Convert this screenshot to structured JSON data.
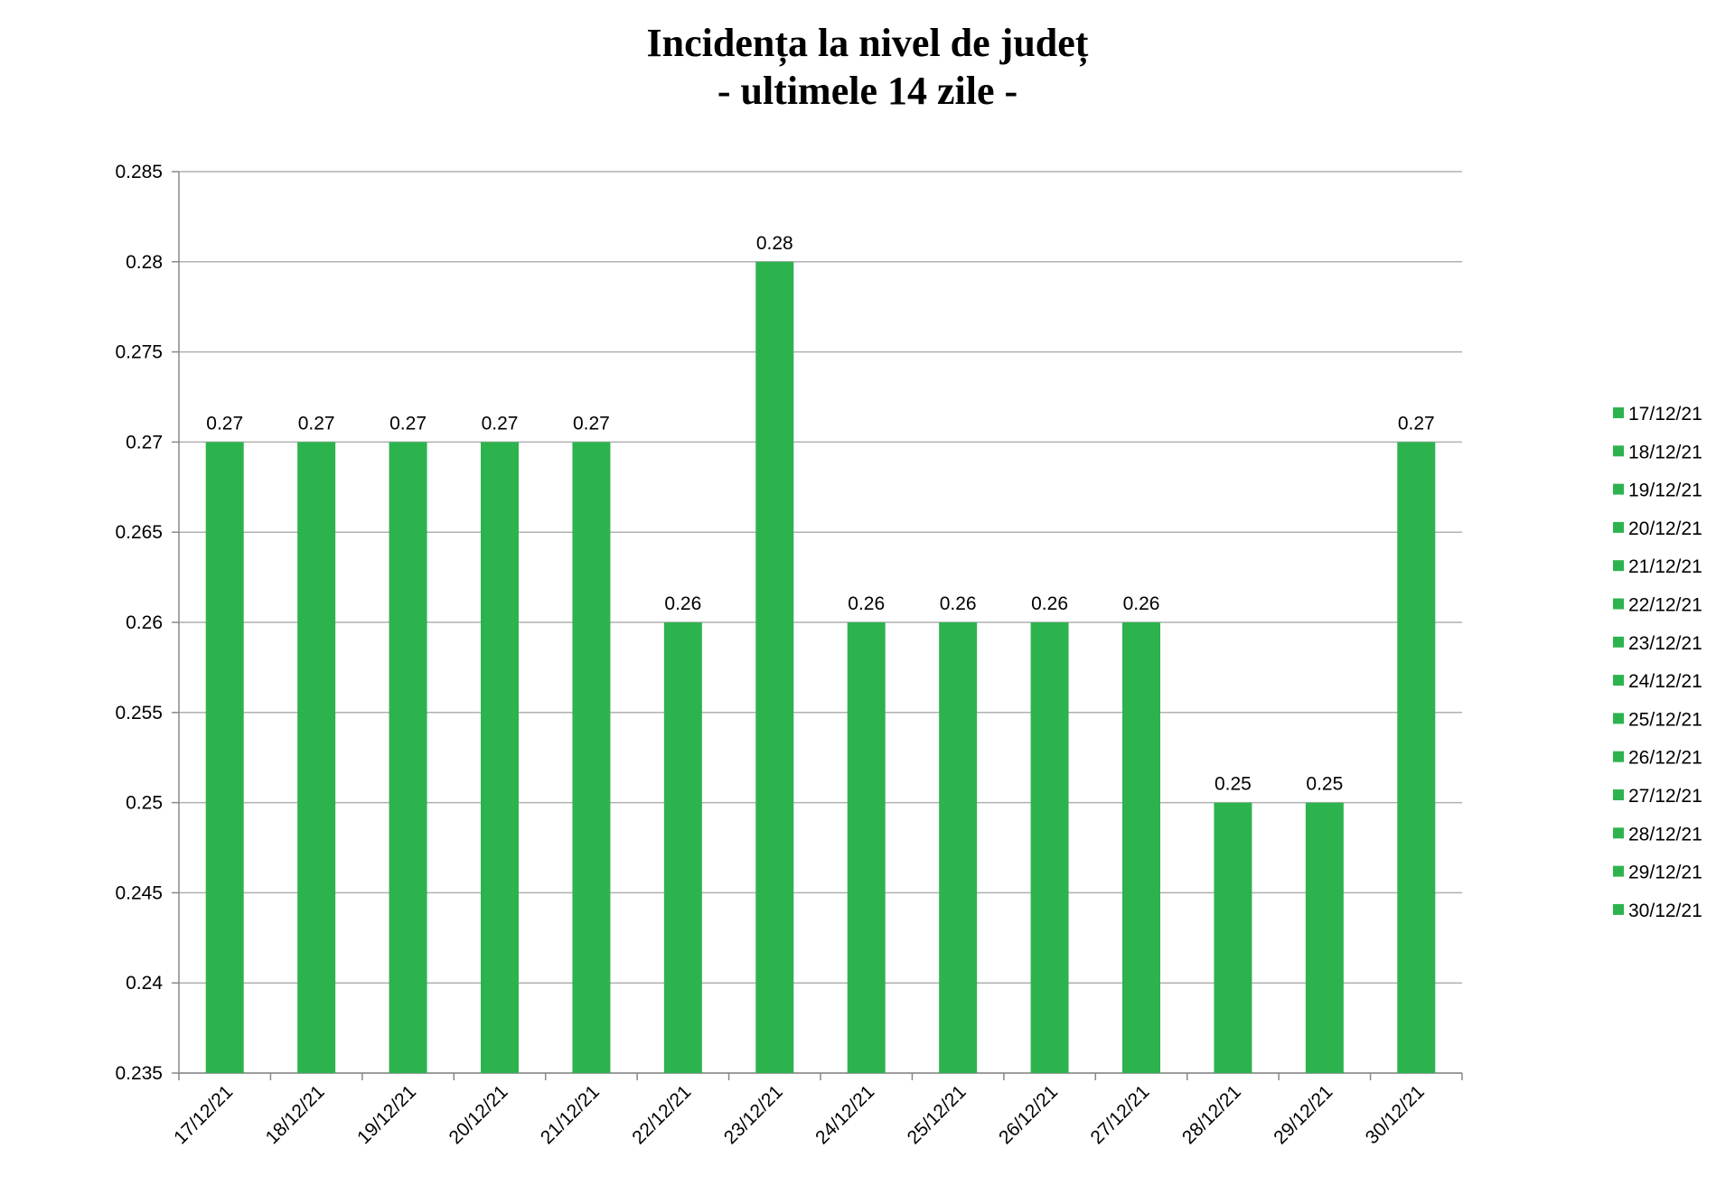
{
  "chart_data": {
    "type": "bar",
    "title": "Incidența la nivel de județ",
    "subtitle": "- ultimele 14 zile -",
    "xlabel": "",
    "ylabel": "",
    "categories": [
      "17/12/21",
      "18/12/21",
      "19/12/21",
      "20/12/21",
      "21/12/21",
      "22/12/21",
      "23/12/21",
      "24/12/21",
      "25/12/21",
      "26/12/21",
      "27/12/21",
      "28/12/21",
      "29/12/21",
      "30/12/21"
    ],
    "values": [
      0.27,
      0.27,
      0.27,
      0.27,
      0.27,
      0.26,
      0.28,
      0.26,
      0.26,
      0.26,
      0.26,
      0.25,
      0.25,
      0.27
    ],
    "data_labels": [
      "0.27",
      "0.27",
      "0.27",
      "0.27",
      "0.27",
      "0.26",
      "0.28",
      "0.26",
      "0.26",
      "0.26",
      "0.26",
      "0.25",
      "0.25",
      "0.27"
    ],
    "ylim": [
      0.235,
      0.285
    ],
    "yticks": [
      0.235,
      0.24,
      0.245,
      0.25,
      0.255,
      0.26,
      0.265,
      0.27,
      0.275,
      0.28,
      0.285
    ],
    "ytick_labels": [
      "0.235",
      "0.24",
      "0.245",
      "0.25",
      "0.255",
      "0.26",
      "0.265",
      "0.27",
      "0.275",
      "0.28",
      "0.285"
    ],
    "grid": true,
    "legend_position": "right",
    "legend_entries": [
      "17/12/21",
      "18/12/21",
      "19/12/21",
      "20/12/21",
      "21/12/21",
      "22/12/21",
      "23/12/21",
      "24/12/21",
      "25/12/21",
      "26/12/21",
      "27/12/21",
      "28/12/21",
      "29/12/21",
      "30/12/21"
    ],
    "bar_color": "#2db34e",
    "grid_color": "#b0b0b0",
    "axis_color": "#888888"
  }
}
